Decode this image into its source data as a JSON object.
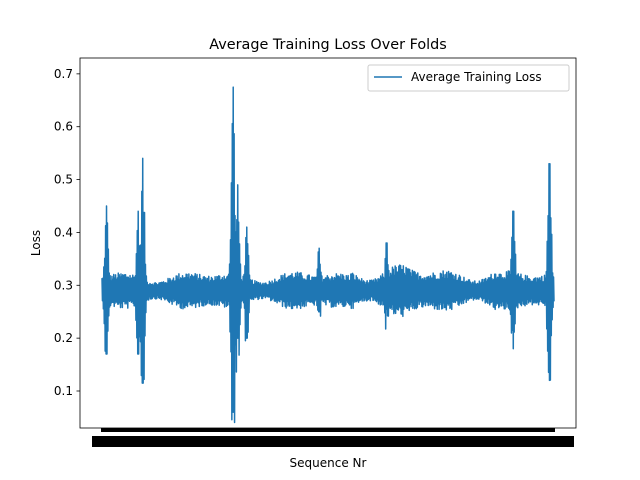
{
  "chart_data": {
    "type": "line",
    "title": "Average Training Loss Over Folds",
    "xlabel": "Sequence Nr",
    "ylabel": "Loss",
    "ylim": [
      0.03,
      0.73
    ],
    "yticks": [
      0.1,
      0.2,
      0.3,
      0.4,
      0.5,
      0.6,
      0.7
    ],
    "ytick_labels": [
      "0.1",
      "0.2",
      "0.3",
      "0.4",
      "0.5",
      "0.6",
      "0.7"
    ],
    "x_tick_labels_note": "dense overlapping tick labels (illegible)",
    "grid": false,
    "legend": {
      "placement": "top-right"
    },
    "series": [
      {
        "name": "Average Training Loss",
        "color": "#1f77b4",
        "sample_points": 1000,
        "baseline": 0.29,
        "features": [
          {
            "at": 0.01,
            "max": 0.45,
            "min": 0.17
          },
          {
            "at": 0.08,
            "max": 0.44,
            "min": 0.17
          },
          {
            "at": 0.09,
            "max": 0.54,
            "min": 0.115
          },
          {
            "at": 0.29,
            "max": 0.675,
            "min": 0.06
          },
          {
            "at": 0.3,
            "max": 0.49,
            "min": 0.2
          },
          {
            "at": 0.32,
            "max": 0.41,
            "min": 0.2
          },
          {
            "at": 0.48,
            "max": 0.37,
            "min": 0.25
          },
          {
            "at": 0.63,
            "max": 0.38,
            "min": 0.255
          },
          {
            "at": 0.91,
            "max": 0.44,
            "min": 0.18
          },
          {
            "at": 0.99,
            "max": 0.53,
            "min": 0.12
          }
        ]
      }
    ]
  }
}
